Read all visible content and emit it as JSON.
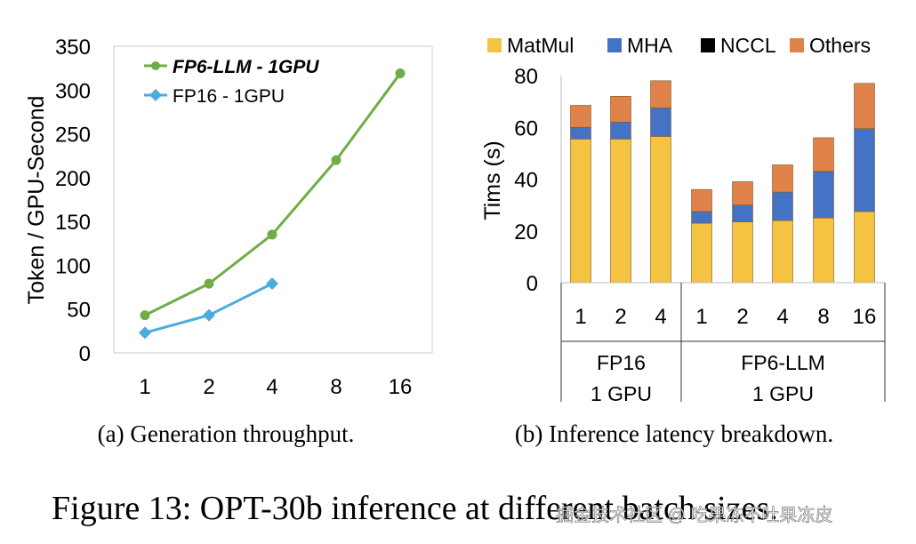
{
  "figure_caption": "Figure 13: OPT-30b inference at different batch sizes.",
  "watermark": "掘金技术社区 @ 吃果冻不吐果冻皮",
  "chart_data": [
    {
      "type": "line",
      "caption": "(a) Generation throughput.",
      "xlabel": "",
      "ylabel": "Token / GPU-Second",
      "categories": [
        "1",
        "2",
        "4",
        "8",
        "16"
      ],
      "ylim": [
        0,
        350
      ],
      "yticks": [
        0,
        50,
        100,
        150,
        200,
        250,
        300,
        350
      ],
      "grid": false,
      "legend_position": "top-left",
      "series": [
        {
          "name": "FP6-LLM  - 1GPU",
          "color": "#70AD47",
          "marker": "circle",
          "values": [
            43,
            79,
            135,
            220,
            319
          ]
        },
        {
          "name": "FP16 - 1GPU",
          "color": "#4BACDE",
          "marker": "diamond",
          "values": [
            23,
            43,
            79,
            null,
            null
          ]
        }
      ]
    },
    {
      "type": "bar",
      "stacked": true,
      "caption": "(b) Inference latency breakdown.",
      "ylabel": "Tims (s)",
      "ylim": [
        0,
        80
      ],
      "yticks": [
        0,
        20,
        40,
        60,
        80
      ],
      "legend_position": "top",
      "groups": [
        {
          "name": "FP16",
          "sub": "1 GPU",
          "categories": [
            "1",
            "2",
            "4"
          ]
        },
        {
          "name": "FP6-LLM",
          "sub": "1 GPU",
          "categories": [
            "1",
            "2",
            "4",
            "8",
            "16"
          ]
        }
      ],
      "series": [
        {
          "name": "MatMul",
          "color": "#F5C342",
          "values": [
            55.5,
            55.5,
            56.5,
            23,
            23.5,
            24,
            25,
            27.5
          ]
        },
        {
          "name": "MHA",
          "color": "#4472C4",
          "values": [
            4.5,
            6.5,
            11,
            4.5,
            6.5,
            11,
            18,
            32
          ]
        },
        {
          "name": "NCCL",
          "color": "#000000",
          "values": [
            0,
            0,
            0,
            0,
            0,
            0,
            0,
            0
          ]
        },
        {
          "name": "Others",
          "color": "#E0834A",
          "values": [
            8.5,
            10,
            10.5,
            8.5,
            9,
            10.5,
            13,
            17.5
          ]
        }
      ]
    }
  ]
}
